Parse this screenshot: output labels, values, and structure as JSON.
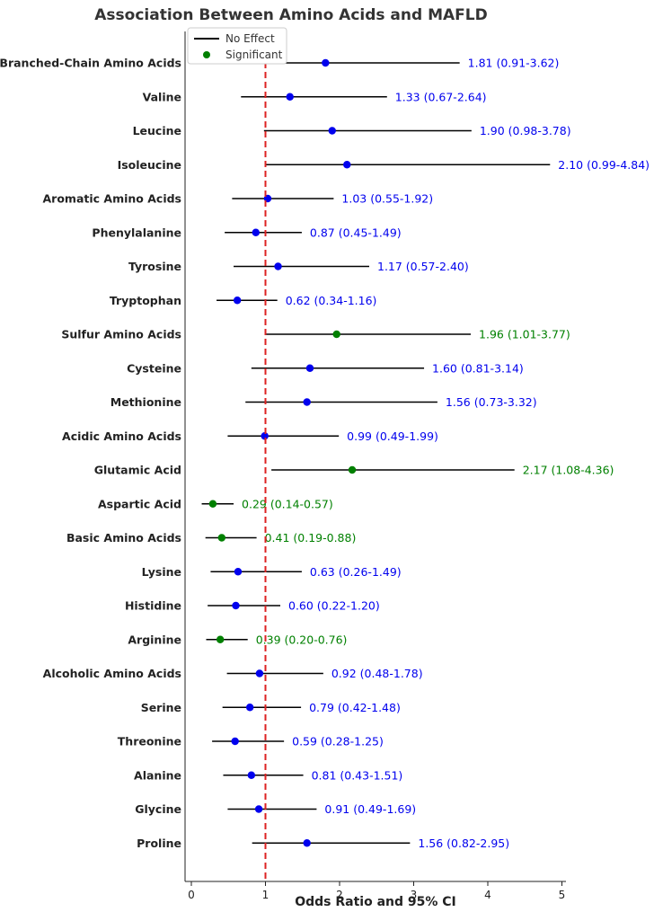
{
  "chart_data": {
    "type": "forest",
    "title": "Association Between Amino Acids and MAFLD",
    "xlabel": "Odds Ratio and 95% CI",
    "xlim": [
      -0.08,
      5.05
    ],
    "xticks": [
      "0",
      "1",
      "2",
      "3",
      "4",
      "5"
    ],
    "reference_line": 1,
    "legend": {
      "placement": "top-left",
      "entries": [
        "No Effect",
        "Significant"
      ]
    },
    "colors": {
      "not_significant": "#0000ee",
      "significant": "#008000",
      "ci": "#000000",
      "reference": "#dd2222"
    },
    "rows": [
      {
        "label": "Branched-Chain Amino Acids",
        "or": 1.81,
        "lo": 0.91,
        "hi": 3.62,
        "significant": false,
        "text": "1.81 (0.91-3.62)"
      },
      {
        "label": "Valine",
        "or": 1.33,
        "lo": 0.67,
        "hi": 2.64,
        "significant": false,
        "text": "1.33 (0.67-2.64)"
      },
      {
        "label": "Leucine",
        "or": 1.9,
        "lo": 0.98,
        "hi": 3.78,
        "significant": false,
        "text": "1.90 (0.98-3.78)"
      },
      {
        "label": "Isoleucine",
        "or": 2.1,
        "lo": 0.99,
        "hi": 4.84,
        "significant": false,
        "text": "2.10 (0.99-4.84)"
      },
      {
        "label": "Aromatic Amino Acids",
        "or": 1.03,
        "lo": 0.55,
        "hi": 1.92,
        "significant": false,
        "text": "1.03 (0.55-1.92)"
      },
      {
        "label": "Phenylalanine",
        "or": 0.87,
        "lo": 0.45,
        "hi": 1.49,
        "significant": false,
        "text": "0.87 (0.45-1.49)"
      },
      {
        "label": "Tyrosine",
        "or": 1.17,
        "lo": 0.57,
        "hi": 2.4,
        "significant": false,
        "text": "1.17 (0.57-2.40)"
      },
      {
        "label": "Tryptophan",
        "or": 0.62,
        "lo": 0.34,
        "hi": 1.16,
        "significant": false,
        "text": "0.62 (0.34-1.16)"
      },
      {
        "label": "Sulfur Amino Acids",
        "or": 1.96,
        "lo": 1.01,
        "hi": 3.77,
        "significant": true,
        "text": "1.96 (1.01-3.77)"
      },
      {
        "label": "Cysteine",
        "or": 1.6,
        "lo": 0.81,
        "hi": 3.14,
        "significant": false,
        "text": "1.60 (0.81-3.14)"
      },
      {
        "label": "Methionine",
        "or": 1.56,
        "lo": 0.73,
        "hi": 3.32,
        "significant": false,
        "text": "1.56 (0.73-3.32)"
      },
      {
        "label": "Acidic Amino Acids",
        "or": 0.99,
        "lo": 0.49,
        "hi": 1.99,
        "significant": false,
        "text": "0.99 (0.49-1.99)"
      },
      {
        "label": "Glutamic Acid",
        "or": 2.17,
        "lo": 1.08,
        "hi": 4.36,
        "significant": true,
        "text": "2.17 (1.08-4.36)"
      },
      {
        "label": "Aspartic Acid",
        "or": 0.29,
        "lo": 0.14,
        "hi": 0.57,
        "significant": true,
        "text": "0.29 (0.14-0.57)"
      },
      {
        "label": "Basic Amino Acids",
        "or": 0.41,
        "lo": 0.19,
        "hi": 0.88,
        "significant": true,
        "text": "0.41 (0.19-0.88)"
      },
      {
        "label": "Lysine",
        "or": 0.63,
        "lo": 0.26,
        "hi": 1.49,
        "significant": false,
        "text": "0.63 (0.26-1.49)"
      },
      {
        "label": "Histidine",
        "or": 0.6,
        "lo": 0.22,
        "hi": 1.2,
        "significant": false,
        "text": "0.60 (0.22-1.20)"
      },
      {
        "label": "Arginine",
        "or": 0.39,
        "lo": 0.2,
        "hi": 0.76,
        "significant": true,
        "text": "0.39 (0.20-0.76)"
      },
      {
        "label": "Alcoholic Amino Acids",
        "or": 0.92,
        "lo": 0.48,
        "hi": 1.78,
        "significant": false,
        "text": "0.92 (0.48-1.78)"
      },
      {
        "label": "Serine",
        "or": 0.79,
        "lo": 0.42,
        "hi": 1.48,
        "significant": false,
        "text": "0.79 (0.42-1.48)"
      },
      {
        "label": "Threonine",
        "or": 0.59,
        "lo": 0.28,
        "hi": 1.25,
        "significant": false,
        "text": "0.59 (0.28-1.25)"
      },
      {
        "label": "Alanine",
        "or": 0.81,
        "lo": 0.43,
        "hi": 1.51,
        "significant": false,
        "text": "0.81 (0.43-1.51)"
      },
      {
        "label": "Glycine",
        "or": 0.91,
        "lo": 0.49,
        "hi": 1.69,
        "significant": false,
        "text": "0.91 (0.49-1.69)"
      },
      {
        "label": "Proline",
        "or": 1.56,
        "lo": 0.82,
        "hi": 2.95,
        "significant": false,
        "text": "1.56 (0.82-2.95)"
      }
    ]
  }
}
